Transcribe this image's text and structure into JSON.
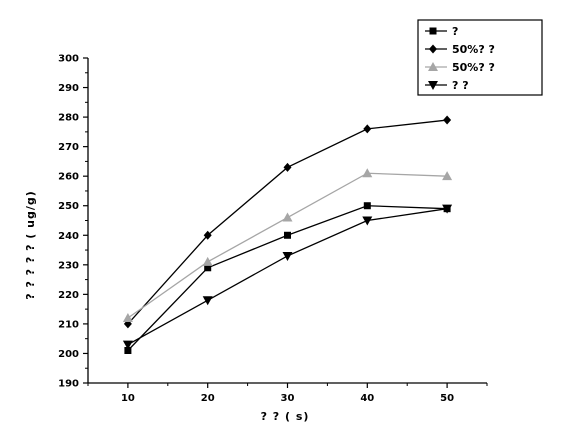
{
  "chart_data": {
    "type": "line",
    "title": "",
    "xlabel": "? ? ( s)",
    "ylabel": "? ? ? ? ? ( ug/g)",
    "x": [
      10,
      20,
      30,
      40,
      50
    ],
    "xlim": [
      5,
      55
    ],
    "ylim": [
      190,
      300
    ],
    "xticks": [
      "10",
      "20",
      "30",
      "40",
      "50"
    ],
    "yticks": [
      "190",
      "200",
      "210",
      "220",
      "230",
      "240",
      "250",
      "260",
      "270",
      "280",
      "290",
      "300"
    ],
    "legend_position": "top-right",
    "grid": false,
    "series": [
      {
        "name": "?",
        "marker": "square",
        "color": "#000000",
        "values": [
          201,
          229,
          240,
          250,
          249
        ]
      },
      {
        "name": "50%? ?",
        "marker": "diamond",
        "color": "#000000",
        "values": [
          210,
          240,
          263,
          276,
          279
        ]
      },
      {
        "name": "50%? ?",
        "marker": "triangle-up",
        "color": "#a6a6a6",
        "values": [
          212,
          231,
          246,
          261,
          260
        ]
      },
      {
        "name": "? ?",
        "marker": "triangle-down",
        "color": "#000000",
        "values": [
          203,
          218,
          233,
          245,
          249
        ]
      }
    ]
  }
}
